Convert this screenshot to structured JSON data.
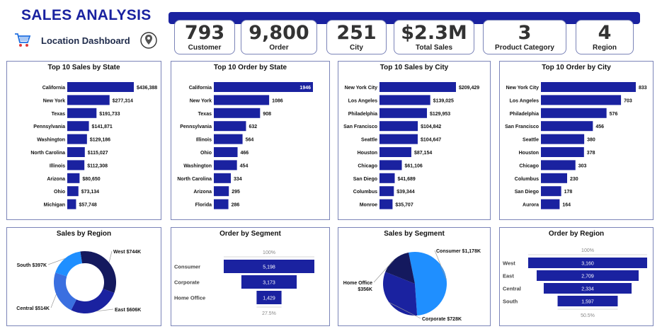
{
  "header": {
    "title": "SALES ANALYSIS",
    "subtitle": "Location Dashboard",
    "cart_icon": "shopping-cart-icon",
    "location_icon": "location-pin-icon"
  },
  "kpis": [
    {
      "value": "793",
      "label": "Customer"
    },
    {
      "value": "9,800",
      "label": "Order"
    },
    {
      "value": "251",
      "label": "City"
    },
    {
      "value": "$2.3M",
      "label": "Total Sales"
    },
    {
      "value": "3",
      "label": "Product Category"
    },
    {
      "value": "4",
      "label": "Region"
    }
  ],
  "colors": {
    "bar": "#1a22a0",
    "accent": "#1a22a0",
    "light_blue": "#1f8fff",
    "mid_blue": "#3a6fe0",
    "dark_navy": "#14195e"
  },
  "chart_data": [
    {
      "type": "bar",
      "orientation": "horizontal",
      "title": "Top 10 Sales by State",
      "categories": [
        "California",
        "New York",
        "Texas",
        "Pennsylvania",
        "Washington",
        "North Carolina",
        "Illinois",
        "Arizona",
        "Ohio",
        "Michigan"
      ],
      "values": [
        436388,
        277314,
        191733,
        141871,
        129186,
        115027,
        112308,
        80650,
        73134,
        57748
      ],
      "labels": [
        "$436,388",
        "$277,314",
        "$191,733",
        "$141,871",
        "$129,186",
        "$115,027",
        "$112,308",
        "$80,650",
        "$73,134",
        "$57,748"
      ]
    },
    {
      "type": "bar",
      "orientation": "horizontal",
      "title": "Top 10 Order by State",
      "categories": [
        "California",
        "New York",
        "Texas",
        "Pennsylvania",
        "Illinois",
        "Ohio",
        "Washington",
        "North Carolina",
        "Arizona",
        "Florida"
      ],
      "values": [
        1946,
        1086,
        908,
        632,
        564,
        466,
        454,
        334,
        295,
        286
      ],
      "labels": [
        "1946",
        "1086",
        "908",
        "632",
        "564",
        "466",
        "454",
        "334",
        "295",
        "286"
      ]
    },
    {
      "type": "bar",
      "orientation": "horizontal",
      "title": "Top 10 Sales by City",
      "categories": [
        "New York City",
        "Los Angeles",
        "Philadelphia",
        "San Francisco",
        "Seattle",
        "Houston",
        "Chicago",
        "San Diego",
        "Columbus",
        "Monroe"
      ],
      "values": [
        209429,
        139025,
        129953,
        104842,
        104647,
        87154,
        61106,
        41689,
        39344,
        35707
      ],
      "labels": [
        "$209,429",
        "$139,025",
        "$129,953",
        "$104,842",
        "$104,647",
        "$87,154",
        "$61,106",
        "$41,689",
        "$39,344",
        "$35,707"
      ]
    },
    {
      "type": "bar",
      "orientation": "horizontal",
      "title": "Top 10 Order by City",
      "categories": [
        "New York City",
        "Los Angeles",
        "Philadelphia",
        "San Francisco",
        "Seattle",
        "Houston",
        "Chicago",
        "Columbus",
        "San Diego",
        "Aurora"
      ],
      "values": [
        833,
        703,
        576,
        456,
        380,
        378,
        303,
        230,
        178,
        164
      ],
      "labels": [
        "833",
        "703",
        "576",
        "456",
        "380",
        "378",
        "303",
        "230",
        "178",
        "164"
      ]
    },
    {
      "type": "pie",
      "variant": "donut",
      "title": "Sales by Region",
      "categories": [
        "West",
        "East",
        "Central",
        "South"
      ],
      "values": [
        744,
        606,
        514,
        397
      ],
      "labels": [
        "West $744K",
        "East $606K",
        "Central $514K",
        "South $397K"
      ],
      "colors": [
        "#14195e",
        "#1a22a0",
        "#3a6fe0",
        "#1f8fff"
      ]
    },
    {
      "type": "bar",
      "variant": "funnel",
      "title": "Order by Segment",
      "categories": [
        "Consumer",
        "Corporate",
        "Home Office"
      ],
      "values": [
        5198,
        3173,
        1429
      ],
      "labels": [
        "5,198",
        "3,173",
        "1,429"
      ],
      "top_percent": "100%",
      "bottom_percent": "27.5%"
    },
    {
      "type": "pie",
      "title": "Sales by Segment",
      "categories": [
        "Consumer",
        "Corporate",
        "Home Office"
      ],
      "values": [
        1178,
        728,
        356
      ],
      "labels": [
        "Consumer $1,178K",
        "Corporate $728K",
        "Home Office $356K"
      ],
      "colors": [
        "#1f8fff",
        "#1a22a0",
        "#14195e"
      ]
    },
    {
      "type": "bar",
      "variant": "funnel",
      "title": "Order by Region",
      "categories": [
        "West",
        "East",
        "Central",
        "South"
      ],
      "values": [
        3160,
        2709,
        2334,
        1597
      ],
      "labels": [
        "3,160",
        "2,709",
        "2,334",
        "1,597"
      ],
      "top_percent": "100%",
      "bottom_percent": "50.5%"
    }
  ]
}
